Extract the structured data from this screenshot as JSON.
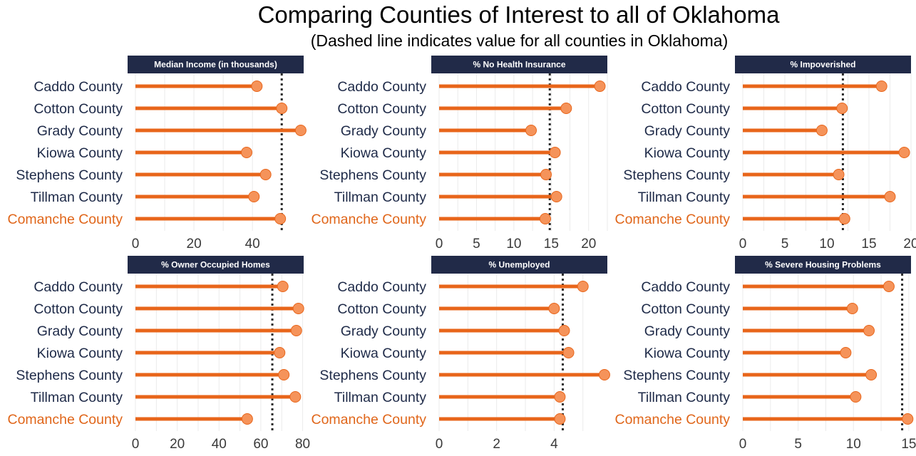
{
  "title": "Comparing Counties of Interest to all of Oklahoma",
  "subtitle": "(Dashed line indicates value for all counties in Oklahoma)",
  "colors": {
    "bar": "#e8651a",
    "point": "#f5935a",
    "point_stroke": "#e8651a",
    "strip": "#212a48",
    "label": "#1e2a48",
    "highlight_label": "#e0661a",
    "reference_line": "#2b2b2b",
    "grid": "#ebebeb"
  },
  "chart_data": [
    {
      "type": "lollipop",
      "title": "Median Income (in thousands)",
      "categories": [
        "Caddo County",
        "Cotton County",
        "Grady County",
        "Kiowa County",
        "Stephens County",
        "Tillman County",
        "Comanche County"
      ],
      "highlight": "Comanche County",
      "values": [
        41.5,
        50,
        56.5,
        38,
        44.5,
        40.5,
        49.5
      ],
      "reference": 50,
      "xlim": [
        0,
        57.5
      ],
      "xticks": [
        0,
        20,
        40
      ]
    },
    {
      "type": "lollipop",
      "title": "% No Health Insurance",
      "categories": [
        "Caddo County",
        "Cotton County",
        "Grady County",
        "Kiowa County",
        "Stephens County",
        "Tillman County",
        "Comanche County"
      ],
      "highlight": "Comanche County",
      "values": [
        21.5,
        17,
        12.3,
        15.5,
        14.3,
        15.7,
        14.2
      ],
      "reference": 14.8,
      "xlim": [
        0,
        22.5
      ],
      "xticks": [
        0,
        5,
        10,
        15,
        20
      ]
    },
    {
      "type": "lollipop",
      "title": "% Impoverished",
      "categories": [
        "Caddo County",
        "Cotton County",
        "Grady County",
        "Kiowa County",
        "Stephens County",
        "Tillman County",
        "Comanche County"
      ],
      "highlight": "Comanche County",
      "values": [
        16.5,
        11.8,
        9.4,
        19.2,
        11.4,
        17.5,
        12.1
      ],
      "reference": 11.9,
      "xlim": [
        0,
        20
      ],
      "xticks": [
        0,
        5,
        10,
        15,
        20
      ]
    },
    {
      "type": "lollipop",
      "title": "% Owner Occupied Homes",
      "categories": [
        "Caddo County",
        "Cotton County",
        "Grady County",
        "Kiowa County",
        "Stephens County",
        "Tillman County",
        "Comanche County"
      ],
      "highlight": "Comanche County",
      "values": [
        70.5,
        78,
        77,
        69,
        71,
        76.5,
        53.5
      ],
      "reference": 65.5,
      "xlim": [
        0,
        80.5
      ],
      "xticks": [
        0,
        20,
        40,
        60,
        80
      ]
    },
    {
      "type": "lollipop",
      "title": "% Unemployed",
      "categories": [
        "Caddo County",
        "Cotton County",
        "Grady County",
        "Kiowa County",
        "Stephens County",
        "Tillman County",
        "Comanche County"
      ],
      "highlight": "Comanche County",
      "values": [
        5.0,
        4.0,
        4.35,
        4.5,
        5.75,
        4.2,
        4.2
      ],
      "reference": 4.3,
      "xlim": [
        0,
        5.85
      ],
      "xticks": [
        0,
        2,
        4
      ]
    },
    {
      "type": "lollipop",
      "title": "% Severe Housing Problems",
      "categories": [
        "Caddo County",
        "Cotton County",
        "Grady County",
        "Kiowa County",
        "Stephens County",
        "Tillman County",
        "Comanche County"
      ],
      "highlight": "Comanche County",
      "values": [
        13.2,
        9.9,
        11.4,
        9.3,
        11.6,
        10.2,
        14.9
      ],
      "reference": 14.4,
      "xlim": [
        0,
        15.2
      ],
      "xticks": [
        0,
        5,
        10,
        15
      ]
    }
  ]
}
